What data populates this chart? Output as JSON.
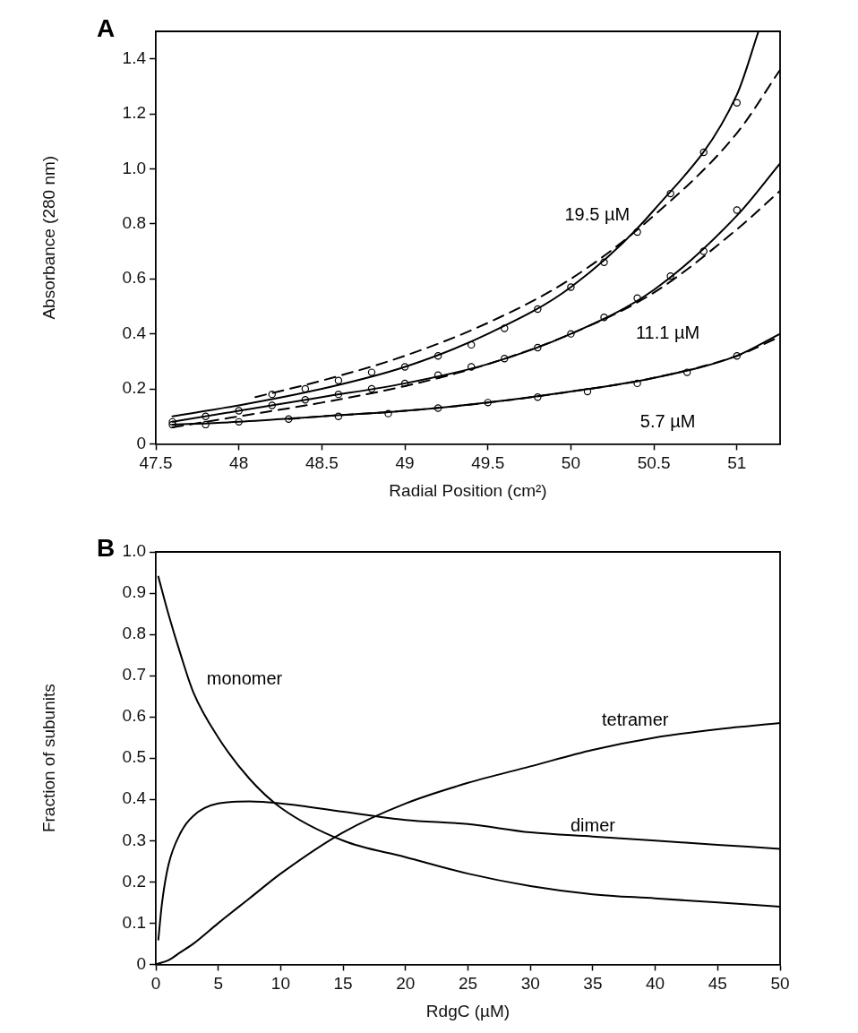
{
  "chart_data": [
    {
      "type": "line",
      "title": "A",
      "xlabel": "Radial Position (cm²)",
      "ylabel": "Absorbance (280 nm)",
      "marker": "circle",
      "xlim": [
        47.5,
        51.26
      ],
      "xticks": [
        47.5,
        48,
        48.5,
        49,
        49.5,
        50,
        50.5,
        51
      ],
      "ylim": [
        0,
        1.5
      ],
      "yticks": [
        0,
        0.2,
        0.4,
        0.6,
        0.8,
        {
          "value": 1,
          "label": "1.0"
        },
        1.2,
        1.4
      ],
      "series": [
        {
          "type": "scatter",
          "name": "19.5 µM",
          "color": "#000000",
          "x": [
            48.2,
            48.4,
            48.6,
            48.8,
            49.0,
            49.2,
            49.4,
            49.6,
            49.8,
            50.0,
            50.2,
            50.4,
            50.6,
            50.8,
            51.0
          ],
          "values": [
            0.18,
            0.2,
            0.23,
            0.26,
            0.28,
            0.32,
            0.36,
            0.42,
            0.49,
            0.57,
            0.66,
            0.77,
            0.91,
            1.06,
            1.24
          ]
        },
        {
          "marker": "none",
          "color": "#000000",
          "x": [
            47.6,
            48,
            48.5,
            49,
            49.5,
            50,
            50.5,
            51,
            51.13
          ],
          "values": [
            0.1,
            0.14,
            0.2,
            0.28,
            0.4,
            0.57,
            0.85,
            1.27,
            1.5
          ]
        },
        {
          "marker": "none",
          "line_style": "dashed",
          "color": "#000000",
          "x": [
            48.1,
            48.5,
            49,
            49.5,
            50,
            50.5,
            51,
            51.26
          ],
          "values": [
            0.17,
            0.23,
            0.32,
            0.44,
            0.6,
            0.83,
            1.13,
            1.36
          ]
        },
        {
          "type": "scatter",
          "name": "11.1 µM",
          "color": "#000000",
          "x": [
            47.6,
            47.8,
            48.0,
            48.2,
            48.4,
            48.6,
            48.8,
            49.0,
            49.2,
            49.4,
            49.6,
            49.8,
            50.0,
            50.2,
            50.4,
            50.6,
            50.8,
            51.0
          ],
          "values": [
            0.08,
            0.1,
            0.12,
            0.14,
            0.16,
            0.18,
            0.2,
            0.22,
            0.25,
            0.28,
            0.31,
            0.35,
            0.4,
            0.46,
            0.53,
            0.61,
            0.7,
            0.85
          ]
        },
        {
          "marker": "none",
          "color": "#000000",
          "x": [
            47.6,
            48,
            48.5,
            49,
            49.5,
            50,
            50.5,
            51,
            51.26
          ],
          "values": [
            0.08,
            0.12,
            0.17,
            0.22,
            0.29,
            0.4,
            0.56,
            0.83,
            1.02
          ]
        },
        {
          "marker": "none",
          "line_style": "dashed",
          "color": "#000000",
          "x": [
            47.6,
            48,
            48.5,
            49,
            49.5,
            50,
            50.5,
            51,
            51.26
          ],
          "values": [
            0.06,
            0.1,
            0.15,
            0.21,
            0.29,
            0.4,
            0.55,
            0.78,
            0.92
          ]
        },
        {
          "type": "scatter",
          "name": "5.7 µM",
          "color": "#000000",
          "x": [
            47.6,
            47.8,
            48.0,
            48.3,
            48.6,
            48.9,
            49.2,
            49.5,
            49.8,
            50.1,
            50.4,
            50.7,
            51.0
          ],
          "values": [
            0.07,
            0.07,
            0.08,
            0.09,
            0.1,
            0.11,
            0.13,
            0.15,
            0.17,
            0.19,
            0.22,
            0.26,
            0.32
          ]
        },
        {
          "marker": "none",
          "color": "#000000",
          "x": [
            47.6,
            48,
            48.5,
            49,
            49.5,
            50,
            50.5,
            51,
            51.26
          ],
          "values": [
            0.07,
            0.08,
            0.1,
            0.12,
            0.15,
            0.19,
            0.24,
            0.32,
            0.4
          ]
        },
        {
          "marker": "none",
          "line_style": "dashed",
          "color": "#000000",
          "x": [
            48.3,
            48.5,
            49,
            49.5,
            50,
            50.5,
            51,
            51.26
          ],
          "values": [
            0.09,
            0.1,
            0.12,
            0.15,
            0.19,
            0.24,
            0.32,
            0.39
          ]
        }
      ]
    },
    {
      "type": "line",
      "title": "B",
      "xlabel": "RdgC (µM)",
      "ylabel": "Fraction of subunits",
      "xlim": [
        0,
        50
      ],
      "xticks": [
        0,
        5,
        10,
        15,
        20,
        25,
        30,
        35,
        40,
        45,
        50
      ],
      "ylim": [
        0,
        1
      ],
      "yticks": [
        0,
        0.1,
        0.2,
        0.3,
        0.4,
        0.5,
        0.6,
        0.7,
        0.8,
        0.9,
        {
          "value": 1,
          "label": "1.0"
        }
      ],
      "series": [
        {
          "name": "monomer",
          "color": "#000000",
          "x": [
            0.2,
            1,
            2,
            3,
            5,
            7.5,
            10,
            15,
            20,
            25,
            30,
            35,
            40,
            45,
            50
          ],
          "values": [
            0.94,
            0.85,
            0.75,
            0.66,
            0.55,
            0.45,
            0.38,
            0.3,
            0.26,
            0.22,
            0.19,
            0.17,
            0.16,
            0.15,
            0.14
          ]
        },
        {
          "name": "dimer",
          "color": "#000000",
          "x": [
            0.2,
            0.5,
            1,
            2,
            3,
            5,
            7.5,
            10,
            15,
            20,
            25,
            30,
            35,
            40,
            45,
            50
          ],
          "values": [
            0.06,
            0.15,
            0.24,
            0.32,
            0.36,
            0.39,
            0.395,
            0.39,
            0.37,
            0.35,
            0.34,
            0.32,
            0.31,
            0.3,
            0.29,
            0.28
          ]
        },
        {
          "name": "tetramer",
          "color": "#000000",
          "x": [
            0,
            1,
            2,
            3,
            5,
            7.5,
            10,
            15,
            20,
            25,
            30,
            35,
            40,
            45,
            50
          ],
          "values": [
            0,
            0.01,
            0.03,
            0.05,
            0.1,
            0.16,
            0.22,
            0.32,
            0.39,
            0.44,
            0.48,
            0.52,
            0.55,
            0.57,
            0.585
          ]
        }
      ]
    }
  ]
}
